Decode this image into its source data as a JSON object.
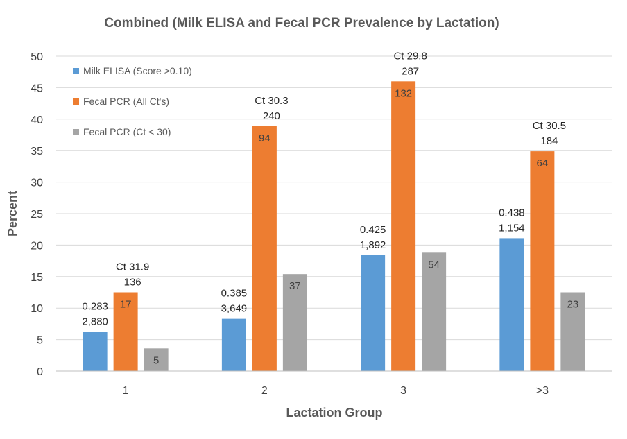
{
  "chart_data": {
    "type": "bar",
    "title": "Combined (Milk ELISA and Fecal PCR Prevalence by Lactation)",
    "xlabel": "Lactation Group",
    "ylabel": "Percent",
    "ylim": [
      0,
      50
    ],
    "ytick_step": 5,
    "ytick_labels": [
      "0",
      "5",
      "10",
      "15",
      "20",
      "25",
      "30",
      "35",
      "40",
      "45",
      "50"
    ],
    "grid": true,
    "legend_position": "top-left",
    "categories": [
      "1",
      "2",
      "3",
      ">3"
    ],
    "series": [
      {
        "name": "Milk ELISA (Score >0.10)",
        "color": "#5B9BD5",
        "values": [
          6.2,
          8.3,
          18.4,
          21.1
        ],
        "labels": [
          "",
          "",
          "",
          ""
        ]
      },
      {
        "name": "Fecal PCR (All Ct's)",
        "color": "#ED7D31",
        "values": [
          12.5,
          38.9,
          46.0,
          34.9
        ],
        "labels": [
          "17",
          "94",
          "132",
          "64"
        ]
      },
      {
        "name": "Fecal PCR (Ct < 30)",
        "color": "#A5A5A5",
        "values": [
          3.6,
          15.4,
          18.8,
          12.5
        ],
        "labels": [
          "5",
          "37",
          "54",
          "23"
        ]
      }
    ],
    "annotations": [
      {
        "category": "1",
        "series": 0,
        "lines": [
          "0.283",
          "2,880"
        ]
      },
      {
        "category": "2",
        "series": 0,
        "lines": [
          "0.385",
          "3,649"
        ]
      },
      {
        "category": "3",
        "series": 0,
        "lines": [
          "0.425",
          "1,892"
        ]
      },
      {
        "category": ">3",
        "series": 0,
        "lines": [
          "0.438",
          "1,154"
        ]
      },
      {
        "category": "1",
        "series": 1,
        "lines": [
          "Ct 31.9",
          "136"
        ]
      },
      {
        "category": "2",
        "series": 1,
        "lines": [
          "Ct 30.3",
          "240"
        ]
      },
      {
        "category": "3",
        "series": 1,
        "lines": [
          "Ct 29.8",
          "287"
        ]
      },
      {
        "category": ">3",
        "series": 1,
        "lines": [
          "Ct 30.5",
          "184"
        ]
      }
    ]
  }
}
